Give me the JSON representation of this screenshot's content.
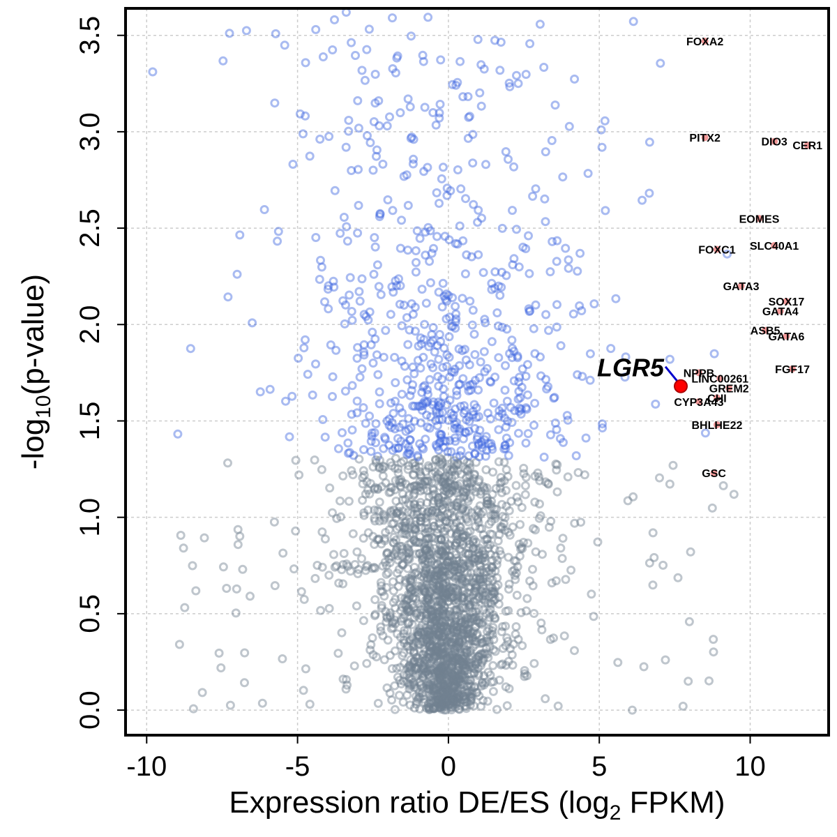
{
  "chart_data": {
    "type": "scatter",
    "title": "",
    "xlabel": {
      "main": "Expression ratio DE/ES (log",
      "sub": "2",
      "tail": " FPKM)"
    },
    "ylabel": {
      "main": "-log",
      "sub": "10",
      "tail": "(p-value)"
    },
    "xlim": [
      -10.7,
      12.6
    ],
    "ylim": [
      -0.13,
      3.64
    ],
    "x_ticks": [
      {
        "value": -10,
        "label": "-10"
      },
      {
        "value": -5,
        "label": "-5"
      },
      {
        "value": 0,
        "label": "0"
      },
      {
        "value": 5,
        "label": "5"
      },
      {
        "value": 10,
        "label": "10"
      }
    ],
    "y_ticks": [
      {
        "value": 0.0,
        "label": "0.0"
      },
      {
        "value": 0.5,
        "label": "0.5"
      },
      {
        "value": 1.0,
        "label": "1.0"
      },
      {
        "value": 1.5,
        "label": "1.5"
      },
      {
        "value": 2.0,
        "label": "2.0"
      },
      {
        "value": 2.5,
        "label": "2.5"
      },
      {
        "value": 3.0,
        "label": "3.0"
      },
      {
        "value": 3.5,
        "label": "3.5"
      }
    ],
    "grid": true,
    "significance_threshold": 1.31,
    "colors": {
      "significant": "#4169e1",
      "not_significant": "#708090",
      "highlight_fill": "#ff0000",
      "highlight_arrow": "#0000cc",
      "gene_marker": "#f08080"
    },
    "labeled_genes": [
      {
        "name": "FOXA2",
        "x": 8.5,
        "y": 3.47
      },
      {
        "name": "PITX2",
        "x": 8.5,
        "y": 2.97
      },
      {
        "name": "DIO3",
        "x": 10.8,
        "y": 2.95
      },
      {
        "name": "CER1",
        "x": 11.9,
        "y": 2.93
      },
      {
        "name": "EOMES",
        "x": 10.3,
        "y": 2.55
      },
      {
        "name": "SLC40A1",
        "x": 10.8,
        "y": 2.41
      },
      {
        "name": "FOXC1",
        "x": 8.9,
        "y": 2.39
      },
      {
        "name": "GATA3",
        "x": 9.7,
        "y": 2.2
      },
      {
        "name": "SOX17",
        "x": 11.2,
        "y": 2.12
      },
      {
        "name": "GATA4",
        "x": 11.0,
        "y": 2.07
      },
      {
        "name": "ASB5",
        "x": 10.5,
        "y": 1.97
      },
      {
        "name": "GATA6",
        "x": 11.2,
        "y": 1.94
      },
      {
        "name": "NPPB",
        "x": 8.3,
        "y": 1.75
      },
      {
        "name": "FGF17",
        "x": 11.4,
        "y": 1.77
      },
      {
        "name": "LINC00261",
        "x": 9.0,
        "y": 1.72
      },
      {
        "name": "GREM2",
        "x": 9.3,
        "y": 1.67
      },
      {
        "name": "CHI",
        "x": 8.9,
        "y": 1.62
      },
      {
        "name": "CYP3A43",
        "x": 8.3,
        "y": 1.6
      },
      {
        "name": "BHLHE22",
        "x": 8.9,
        "y": 1.48
      },
      {
        "name": "GSC",
        "x": 8.8,
        "y": 1.23
      }
    ],
    "highlight": {
      "name": "LGR5",
      "x": 7.7,
      "y": 1.68
    }
  }
}
